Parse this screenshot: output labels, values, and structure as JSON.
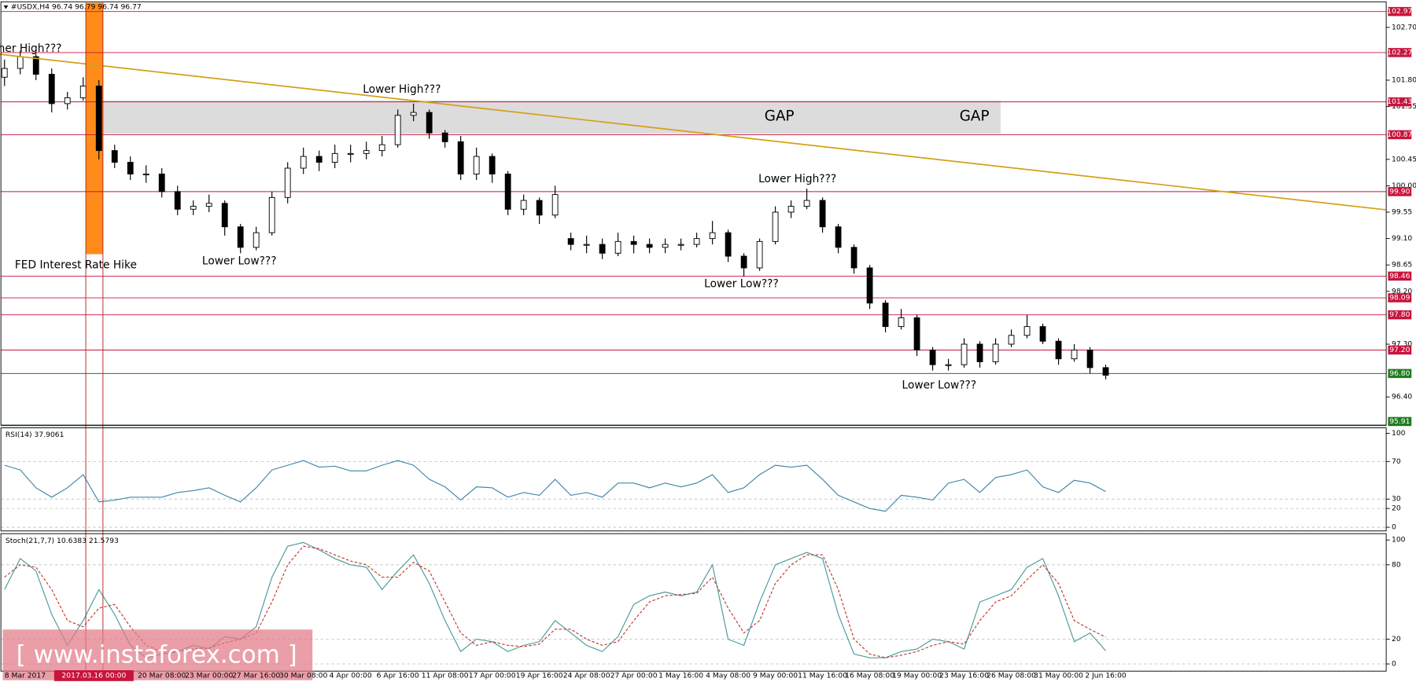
{
  "header": "#USDX,H4 96.74 96.79 96.74 96.77",
  "watermark": "[ www.instaforex.com ]",
  "cursor_label": "2017.03.16 00:00",
  "chart_data": [
    {
      "type": "candlestick",
      "categories": [
        "8 Mar 2017",
        null,
        null,
        null,
        null,
        null,
        null,
        null,
        null,
        null,
        "20 Mar 08:00",
        null,
        null,
        "23 Mar 00:00",
        null,
        null,
        "27 Mar 16:00",
        null,
        null,
        "30 Mar 08:00",
        null,
        null,
        "4 Apr 00:00",
        null,
        null,
        "6 Apr 16:00",
        null,
        null,
        "11 Apr 08:00",
        null,
        null,
        "17 Apr 00:00",
        null,
        null,
        "19 Apr 16:00",
        null,
        null,
        "24 Apr 08:00",
        null,
        null,
        "27 Apr 00:00",
        null,
        null,
        "1 May 16:00",
        null,
        null,
        "4 May 08:00",
        null,
        null,
        "9 May 00:00",
        null,
        null,
        "11 May 16:00",
        null,
        null,
        "16 May 08:00",
        null,
        null,
        "19 May 00:00",
        null,
        null,
        "23 May 16:00",
        null,
        null,
        "26 May 08:00",
        null,
        null,
        "31 May 00:00",
        null,
        null,
        "2 Jun 16:00"
      ],
      "open": [
        101.85,
        102.0,
        102.2,
        101.9,
        101.4,
        101.5,
        101.7,
        100.6,
        100.4,
        100.2,
        100.2,
        99.9,
        99.6,
        99.65,
        99.7,
        99.3,
        98.95,
        99.2,
        99.8,
        100.3,
        100.5,
        100.4,
        100.55,
        100.55,
        100.6,
        100.7,
        101.2,
        101.25,
        100.9,
        100.75,
        100.2,
        100.5,
        100.2,
        99.6,
        99.75,
        99.5,
        99.1,
        99.0,
        99.0,
        98.85,
        99.05,
        99.0,
        98.95,
        99.0,
        99.0,
        99.1,
        99.2,
        98.8,
        98.6,
        99.05,
        99.55,
        99.65,
        99.75,
        99.3,
        98.95,
        98.6,
        98.0,
        97.6,
        97.75,
        97.2,
        96.95,
        96.95,
        97.3,
        97.0,
        97.3,
        97.45,
        97.6,
        97.35,
        97.05,
        97.2,
        96.9
      ],
      "high": [
        102.15,
        102.3,
        102.25,
        102.0,
        101.6,
        101.85,
        101.8,
        100.7,
        100.5,
        100.35,
        100.3,
        100.0,
        99.75,
        99.85,
        99.75,
        99.35,
        99.3,
        99.9,
        100.4,
        100.65,
        100.6,
        100.7,
        100.7,
        100.75,
        100.85,
        101.3,
        101.4,
        101.3,
        100.95,
        100.85,
        100.65,
        100.55,
        100.25,
        99.85,
        99.8,
        100.0,
        99.2,
        99.15,
        99.1,
        99.2,
        99.15,
        99.1,
        99.1,
        99.1,
        99.2,
        99.4,
        99.25,
        98.85,
        99.1,
        99.65,
        99.75,
        99.95,
        99.8,
        99.35,
        99.0,
        98.65,
        98.05,
        97.9,
        97.8,
        97.25,
        97.05,
        97.4,
        97.35,
        97.4,
        97.55,
        97.8,
        97.65,
        97.4,
        97.3,
        97.25,
        96.95
      ],
      "low": [
        101.7,
        101.9,
        101.8,
        101.25,
        101.3,
        101.45,
        100.45,
        100.3,
        100.1,
        100.05,
        99.8,
        99.5,
        99.5,
        99.55,
        99.15,
        98.85,
        98.9,
        99.15,
        99.7,
        100.2,
        100.25,
        100.3,
        100.4,
        100.45,
        100.5,
        100.65,
        101.1,
        100.8,
        100.65,
        100.1,
        100.1,
        100.05,
        99.5,
        99.5,
        99.35,
        99.45,
        98.9,
        98.85,
        98.75,
        98.8,
        98.85,
        98.85,
        98.85,
        98.9,
        98.95,
        99.0,
        98.7,
        98.45,
        98.55,
        99.0,
        99.45,
        99.6,
        99.2,
        98.85,
        98.5,
        97.9,
        97.5,
        97.55,
        97.1,
        96.85,
        96.85,
        96.9,
        96.9,
        96.95,
        97.25,
        97.4,
        97.3,
        96.95,
        97.0,
        96.8,
        96.7
      ],
      "close": [
        102.0,
        102.2,
        101.9,
        101.4,
        101.5,
        101.7,
        100.6,
        100.4,
        100.2,
        100.2,
        99.9,
        99.6,
        99.65,
        99.7,
        99.3,
        98.95,
        99.2,
        99.8,
        100.3,
        100.5,
        100.4,
        100.55,
        100.55,
        100.6,
        100.7,
        101.2,
        101.25,
        100.9,
        100.75,
        100.2,
        100.5,
        100.2,
        99.6,
        99.75,
        99.5,
        99.85,
        99.0,
        99.0,
        98.85,
        99.05,
        99.0,
        98.95,
        99.0,
        99.0,
        99.1,
        99.2,
        98.8,
        98.6,
        99.05,
        99.55,
        99.65,
        99.75,
        99.3,
        98.95,
        98.6,
        98.0,
        97.6,
        97.75,
        97.2,
        96.95,
        96.95,
        97.3,
        97.0,
        97.3,
        97.45,
        97.6,
        97.35,
        97.05,
        97.2,
        96.9,
        96.77
      ],
      "color": "#000000",
      "ylim": [
        95.92,
        103.12
      ],
      "yticks": [
        {
          "value": 102.7,
          "label": "102.70"
        },
        {
          "value": 101.8,
          "label": "101.80"
        },
        {
          "value": 101.35,
          "label": "101.35"
        },
        {
          "value": 100.45,
          "label": "100.45"
        },
        {
          "value": 100.0,
          "label": "100.00"
        },
        {
          "value": 99.55,
          "label": "99.55"
        },
        {
          "value": 99.1,
          "label": "99.10"
        },
        {
          "value": 98.65,
          "label": "98.65"
        },
        {
          "value": 98.2,
          "label": "98.20"
        },
        {
          "value": 97.3,
          "label": "97.30"
        },
        {
          "value": 96.4,
          "label": "96.40"
        }
      ],
      "levels": [
        {
          "value": 102.97,
          "label": "102.97",
          "color": "#c8143c"
        },
        {
          "value": 102.27,
          "label": "102.27",
          "color": "#c8143c"
        },
        {
          "value": 101.43,
          "label": "101.43",
          "color": "#c8143c"
        },
        {
          "value": 100.87,
          "label": "100.87",
          "color": "#c8143c"
        },
        {
          "value": 99.9,
          "label": "99.90",
          "color": "#c8143c"
        },
        {
          "value": 98.46,
          "label": "98.46",
          "color": "#c8143c"
        },
        {
          "value": 98.09,
          "label": "98.09",
          "color": "#c8143c"
        },
        {
          "value": 97.8,
          "label": "97.80",
          "color": "#c8143c"
        },
        {
          "value": 97.2,
          "label": "97.20",
          "color": "#c8143c"
        },
        {
          "value": 96.8,
          "label": "96.80",
          "color": "#1e7d1e"
        },
        {
          "value": 95.91,
          "label": "95.91",
          "color": "#1e7d1e"
        }
      ],
      "annotations": [
        "Higher High???",
        "FED Interest Rate Hike",
        "Lower High???",
        "Lower Low???",
        "GAP",
        "GAP",
        "Lower High???",
        "Lower Low???",
        "Lower Low???"
      ]
    },
    {
      "type": "line",
      "title": "RSI(14) 37.9061",
      "series": [
        {
          "color": "#3f87a6",
          "values": [
            66,
            61,
            42,
            32,
            42,
            56,
            27,
            29,
            32,
            32,
            32,
            37,
            39,
            42,
            34,
            27,
            42,
            61,
            66,
            71,
            64,
            65,
            60,
            60,
            66,
            71,
            66,
            51,
            43,
            29,
            43,
            42,
            32,
            37,
            34,
            51,
            34,
            37,
            32,
            47,
            47,
            42,
            47,
            43,
            47,
            56,
            37,
            42,
            56,
            66,
            64,
            66,
            51,
            34,
            27,
            20,
            17,
            34,
            32,
            29,
            47,
            51,
            37,
            53,
            56,
            61,
            43,
            37,
            50,
            47,
            38
          ]
        }
      ],
      "ylim": [
        -3.9,
        105.8
      ],
      "yticks": [
        100,
        70,
        30,
        20,
        0
      ],
      "grid": true
    },
    {
      "type": "line",
      "title": "Stoch(21,7,7) 10.6383 21.5793",
      "series": [
        {
          "color": "#4a9a9a",
          "values": [
            60,
            85,
            75,
            40,
            15,
            35,
            60,
            40,
            15,
            5,
            8,
            10,
            15,
            12,
            22,
            20,
            30,
            70,
            95,
            98,
            92,
            85,
            80,
            78,
            60,
            75,
            88,
            65,
            35,
            10,
            20,
            18,
            10,
            15,
            18,
            35,
            25,
            15,
            10,
            22,
            48,
            55,
            58,
            55,
            58,
            80,
            20,
            15,
            50,
            80,
            85,
            90,
            85,
            40,
            8,
            5,
            5,
            10,
            12,
            20,
            18,
            12,
            50,
            55,
            60,
            78,
            85,
            55,
            18,
            25,
            10.64
          ]
        },
        {
          "color": "#c0392b",
          "dash": true,
          "values": [
            70,
            80,
            78,
            60,
            35,
            30,
            45,
            48,
            30,
            15,
            10,
            10,
            12,
            13,
            17,
            20,
            25,
            50,
            80,
            95,
            93,
            88,
            83,
            80,
            70,
            70,
            82,
            75,
            50,
            25,
            15,
            18,
            15,
            14,
            16,
            28,
            28,
            20,
            15,
            18,
            35,
            50,
            55,
            56,
            57,
            70,
            45,
            25,
            35,
            65,
            80,
            88,
            88,
            60,
            20,
            8,
            5,
            7,
            10,
            15,
            18,
            16,
            35,
            50,
            55,
            68,
            80,
            65,
            35,
            28,
            21.58
          ]
        }
      ],
      "ylim": [
        -5.8,
        105.1
      ],
      "yticks": [
        100,
        80,
        20,
        0
      ],
      "grid": true
    }
  ]
}
